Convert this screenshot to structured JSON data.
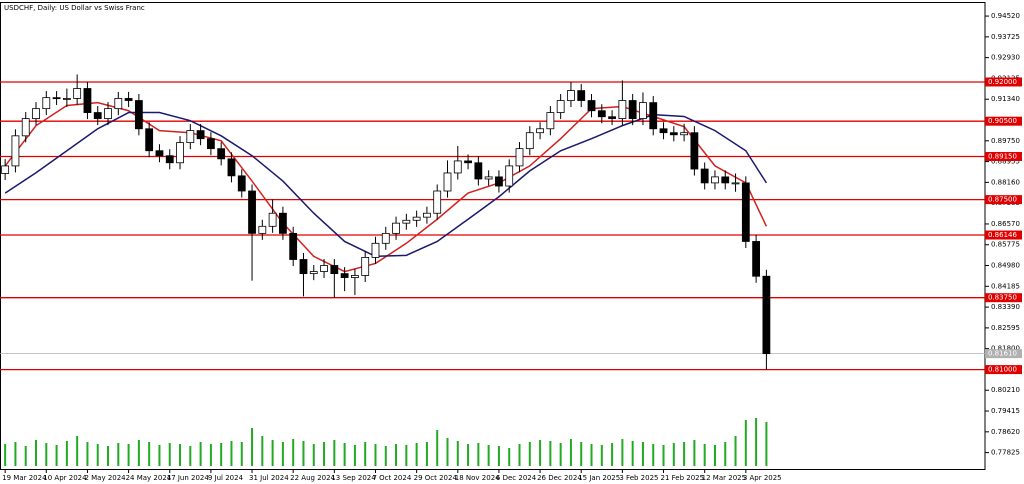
{
  "chart_data": {
    "type": "candlestick",
    "title": "USDCHF, Daily:  US Dollar vs Swiss Franc",
    "x": [
      0,
      4,
      8,
      12,
      16,
      20,
      24,
      28,
      32,
      36,
      40,
      44,
      48,
      52,
      56,
      60,
      64,
      68,
      72,
      76,
      80,
      84,
      88,
      92,
      96,
      100,
      104,
      108,
      112,
      116,
      120,
      124,
      128,
      132,
      136,
      140,
      144,
      148,
      152,
      156,
      160,
      164,
      168,
      172,
      176,
      180,
      184,
      188,
      192,
      196,
      200,
      204,
      208,
      212,
      216,
      220,
      224,
      228,
      232,
      236,
      240,
      244,
      248,
      252,
      256,
      260,
      264,
      268,
      272,
      276,
      280,
      284,
      288,
      292,
      296
    ],
    "ohlc": [
      [
        0.885,
        0.8905,
        0.8825,
        0.8879
      ],
      [
        0.8879,
        0.9019,
        0.8854,
        0.8994
      ],
      [
        0.8994,
        0.9085,
        0.8969,
        0.906
      ],
      [
        0.906,
        0.9123,
        0.9035,
        0.9098
      ],
      [
        0.9098,
        0.9165,
        0.9073,
        0.914
      ],
      [
        0.914,
        0.9165,
        0.9112,
        0.9137
      ],
      [
        0.9137,
        0.9175,
        0.9105,
        0.9137
      ],
      [
        0.9137,
        0.9229,
        0.9112,
        0.9175
      ],
      [
        0.9175,
        0.92,
        0.9058,
        0.9083
      ],
      [
        0.9083,
        0.9108,
        0.9035,
        0.906
      ],
      [
        0.906,
        0.9123,
        0.9035,
        0.9098
      ],
      [
        0.9098,
        0.9162,
        0.9073,
        0.9137
      ],
      [
        0.9137,
        0.9162,
        0.9104,
        0.9129
      ],
      [
        0.9129,
        0.9154,
        0.8996,
        0.9021
      ],
      [
        0.9021,
        0.9046,
        0.8912,
        0.8937
      ],
      [
        0.8937,
        0.8962,
        0.8893,
        0.8918
      ],
      [
        0.8918,
        0.8943,
        0.8866,
        0.8891
      ],
      [
        0.8891,
        0.8993,
        0.8866,
        0.8968
      ],
      [
        0.8968,
        0.9039,
        0.8943,
        0.9014
      ],
      [
        0.9014,
        0.9039,
        0.8958,
        0.8983
      ],
      [
        0.8983,
        0.9008,
        0.892,
        0.8945
      ],
      [
        0.8945,
        0.897,
        0.8881,
        0.8906
      ],
      [
        0.8906,
        0.8931,
        0.8816,
        0.8841
      ],
      [
        0.8841,
        0.8866,
        0.8758,
        0.8783
      ],
      [
        0.8783,
        0.8808,
        0.844,
        0.8621
      ],
      [
        0.8621,
        0.8673,
        0.8596,
        0.8648
      ],
      [
        0.8648,
        0.875,
        0.8623,
        0.8698
      ],
      [
        0.8698,
        0.8723,
        0.8596,
        0.8621
      ],
      [
        0.8621,
        0.8646,
        0.8496,
        0.8521
      ],
      [
        0.8521,
        0.8546,
        0.838,
        0.8467
      ],
      [
        0.8467,
        0.85,
        0.8442,
        0.8475
      ],
      [
        0.8475,
        0.8523,
        0.845,
        0.8498
      ],
      [
        0.8498,
        0.8523,
        0.8375,
        0.8467
      ],
      [
        0.8467,
        0.8492,
        0.84,
        0.8452
      ],
      [
        0.8452,
        0.8485,
        0.8385,
        0.846
      ],
      [
        0.846,
        0.8554,
        0.8435,
        0.8529
      ],
      [
        0.8529,
        0.8608,
        0.8504,
        0.8583
      ],
      [
        0.8583,
        0.8646,
        0.8558,
        0.8621
      ],
      [
        0.8621,
        0.8685,
        0.8596,
        0.866
      ],
      [
        0.866,
        0.8696,
        0.8635,
        0.8671
      ],
      [
        0.8671,
        0.8708,
        0.8646,
        0.8683
      ],
      [
        0.8683,
        0.8723,
        0.8658,
        0.8698
      ],
      [
        0.8698,
        0.8808,
        0.8673,
        0.8783
      ],
      [
        0.8783,
        0.89,
        0.8758,
        0.8852
      ],
      [
        0.8852,
        0.8955,
        0.8827,
        0.8898
      ],
      [
        0.8898,
        0.8923,
        0.8866,
        0.8891
      ],
      [
        0.8891,
        0.8916,
        0.8804,
        0.8829
      ],
      [
        0.8829,
        0.8862,
        0.8804,
        0.8837
      ],
      [
        0.8837,
        0.8862,
        0.8777,
        0.8802
      ],
      [
        0.8802,
        0.8904,
        0.8777,
        0.8879
      ],
      [
        0.8879,
        0.897,
        0.8854,
        0.8945
      ],
      [
        0.8945,
        0.9031,
        0.892,
        0.9006
      ],
      [
        0.9006,
        0.9046,
        0.8981,
        0.9021
      ],
      [
        0.9021,
        0.9108,
        0.8996,
        0.9083
      ],
      [
        0.9083,
        0.9154,
        0.9058,
        0.9129
      ],
      [
        0.9129,
        0.92,
        0.9104,
        0.9167
      ],
      [
        0.9167,
        0.9192,
        0.9104,
        0.9129
      ],
      [
        0.9129,
        0.9154,
        0.9065,
        0.909
      ],
      [
        0.909,
        0.9115,
        0.9042,
        0.9067
      ],
      [
        0.9067,
        0.9092,
        0.9035,
        0.906
      ],
      [
        0.906,
        0.9206,
        0.9035,
        0.9129
      ],
      [
        0.9129,
        0.9154,
        0.9035,
        0.906
      ],
      [
        0.906,
        0.916,
        0.9035,
        0.9121
      ],
      [
        0.9121,
        0.9146,
        0.8996,
        0.9021
      ],
      [
        0.9021,
        0.9046,
        0.8981,
        0.9006
      ],
      [
        0.9006,
        0.9031,
        0.8973,
        0.8998
      ],
      [
        0.8998,
        0.904,
        0.8973,
        0.9006
      ],
      [
        0.9006,
        0.9031,
        0.8842,
        0.8867
      ],
      [
        0.8867,
        0.8892,
        0.8789,
        0.8814
      ],
      [
        0.8814,
        0.8862,
        0.8789,
        0.8837
      ],
      [
        0.8837,
        0.8862,
        0.8789,
        0.8814
      ],
      [
        0.8814,
        0.885,
        0.878,
        0.8814
      ],
      [
        0.8814,
        0.8839,
        0.8565,
        0.859
      ],
      [
        0.859,
        0.8615,
        0.8432,
        0.8457
      ],
      [
        0.8457,
        0.8482,
        0.81,
        0.8161
      ]
    ],
    "up_color": "#ffffff",
    "down_color": "#000000",
    "volume": [
      22,
      24,
      20,
      26,
      23,
      21,
      25,
      30,
      24,
      22,
      20,
      23,
      22,
      26,
      24,
      21,
      23,
      22,
      20,
      24,
      22,
      23,
      25,
      24,
      38,
      30,
      26,
      24,
      27,
      25,
      22,
      24,
      26,
      23,
      21,
      24,
      22,
      20,
      22,
      21,
      23,
      24,
      36,
      28,
      25,
      22,
      23,
      21,
      20,
      18,
      22,
      24,
      26,
      25,
      23,
      27,
      24,
      22,
      21,
      23,
      27,
      25,
      24,
      22,
      21,
      23,
      24,
      26,
      22,
      21,
      24,
      30,
      46,
      48,
      44
    ],
    "volume_color": "#22aa22",
    "overlays": [
      {
        "color": "#d42020",
        "x": [
          0,
          12,
          24,
          36,
          48,
          60,
          72,
          84,
          96,
          108,
          120,
          132,
          144,
          156,
          168,
          180,
          192,
          204,
          216,
          228,
          240,
          252,
          264,
          276,
          288,
          296
        ],
        "values": [
          0.8879,
          0.9033,
          0.911,
          0.9121,
          0.909,
          0.9014,
          0.9006,
          0.8975,
          0.8821,
          0.866,
          0.8533,
          0.8475,
          0.8506,
          0.8583,
          0.8675,
          0.8775,
          0.8814,
          0.8879,
          0.8983,
          0.9098,
          0.9106,
          0.9068,
          0.9029,
          0.8879,
          0.8814,
          0.8648
        ]
      },
      {
        "color": "#1a1a6e",
        "x": [
          0,
          12,
          24,
          36,
          48,
          60,
          72,
          84,
          96,
          108,
          120,
          132,
          144,
          156,
          168,
          180,
          192,
          204,
          216,
          228,
          240,
          252,
          264,
          276,
          288,
          296
        ],
        "values": [
          0.8775,
          0.8853,
          0.8937,
          0.9021,
          0.9083,
          0.9083,
          0.9052,
          0.8994,
          0.8918,
          0.8821,
          0.8698,
          0.859,
          0.8533,
          0.8537,
          0.859,
          0.8675,
          0.8761,
          0.886,
          0.8937,
          0.8983,
          0.9033,
          0.9075,
          0.9068,
          0.9014,
          0.8937,
          0.8814
        ]
      }
    ],
    "levels": [
      {
        "value": 0.92,
        "label": "0.92000"
      },
      {
        "value": 0.905,
        "label": "0.90500"
      },
      {
        "value": 0.8915,
        "label": "0.89150"
      },
      {
        "value": 0.875,
        "label": "0.87500"
      },
      {
        "value": 0.86146,
        "label": "0.86146"
      },
      {
        "value": 0.8375,
        "label": "0.83750"
      },
      {
        "value": 0.81,
        "label": "0.81000"
      }
    ],
    "level_color": "#e00000",
    "bid": {
      "value": 0.8161,
      "label": "0.81610"
    },
    "bid_color": "#b0b0b0",
    "xlim": [
      -2,
      381
    ],
    "ylim": [
      0.7716,
      0.9502
    ],
    "xticks": [
      {
        "value": 0,
        "label": "19 Mar 2024"
      },
      {
        "value": 16,
        "label": "10 Apr 2024"
      },
      {
        "value": 32,
        "label": "2 May 2024"
      },
      {
        "value": 48,
        "label": "24 May 2024"
      },
      {
        "value": 64,
        "label": "17 Jun 2024"
      },
      {
        "value": 80,
        "label": "9 Jul 2024"
      },
      {
        "value": 96,
        "label": "31 Jul 2024"
      },
      {
        "value": 112,
        "label": "22 Aug 2024"
      },
      {
        "value": 128,
        "label": "13 Sep 2024"
      },
      {
        "value": 144,
        "label": "7 Oct 2024"
      },
      {
        "value": 160,
        "label": "29 Oct 2024"
      },
      {
        "value": 176,
        "label": "18 Nov 2024"
      },
      {
        "value": 192,
        "label": "6 Dec 2024"
      },
      {
        "value": 208,
        "label": "26 Dec 2024"
      },
      {
        "value": 224,
        "label": "15 Jan 2025"
      },
      {
        "value": 240,
        "label": "3 Feb 2025"
      },
      {
        "value": 256,
        "label": "21 Feb 2025"
      },
      {
        "value": 272,
        "label": "12 Mar 2025"
      },
      {
        "value": 288,
        "label": "3 Apr 2025"
      }
    ],
    "yticks": [
      {
        "value": 0.9452,
        "label": "0.94520"
      },
      {
        "value": 0.93725,
        "label": "0.93725"
      },
      {
        "value": 0.9293,
        "label": "0.92930"
      },
      {
        "value": 0.92135,
        "label": "0.92135"
      },
      {
        "value": 0.9134,
        "label": "0.91340"
      },
      {
        "value": 0.90545,
        "label": "0.90545"
      },
      {
        "value": 0.8975,
        "label": "0.89750"
      },
      {
        "value": 0.88955,
        "label": "0.88955"
      },
      {
        "value": 0.8816,
        "label": "0.88160"
      },
      {
        "value": 0.87365,
        "label": "0.87365"
      },
      {
        "value": 0.8657,
        "label": "0.86570"
      },
      {
        "value": 0.85775,
        "label": "0.85775"
      },
      {
        "value": 0.8498,
        "label": "0.84980"
      },
      {
        "value": 0.84185,
        "label": "0.84185"
      },
      {
        "value": 0.8339,
        "label": "0.83390"
      },
      {
        "value": 0.82595,
        "label": "0.82595"
      },
      {
        "value": 0.818,
        "label": "0.81800"
      },
      {
        "value": 0.81005,
        "label": "0.81005"
      },
      {
        "value": 0.8021,
        "label": "0.80210"
      },
      {
        "value": 0.79415,
        "label": "0.79415"
      },
      {
        "value": 0.7862,
        "label": "0.78620"
      },
      {
        "value": 0.77825,
        "label": "0.77825"
      }
    ]
  }
}
